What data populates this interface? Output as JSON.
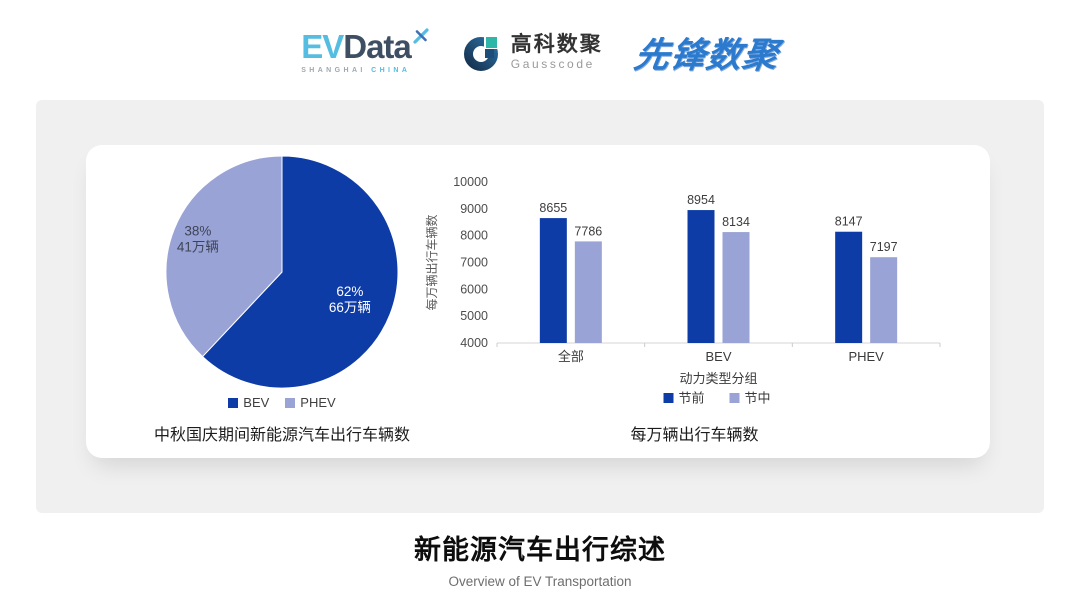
{
  "colors": {
    "brand_dark_blue": "#0e3ca6",
    "brand_light_blue": "#99a3d6",
    "panel_bg": "#f0f0f0",
    "card_bg": "#ffffff",
    "evdata_blue": "#55bde2",
    "evdata_dark": "#3f4f63",
    "gausscode_navy": "#1d4e79",
    "gausscode_teal": "#2eb6a8",
    "xianfeng_blue": "#2b7ace"
  },
  "header": {
    "evdata": {
      "ev": "EV",
      "data": "Data",
      "sub_left": "SHANGHAI",
      "sub_right": "CHINA"
    },
    "gausscode": {
      "cn": "高科数聚",
      "en": "Gausscode"
    },
    "xianfeng": {
      "text": "先锋数聚"
    }
  },
  "chart_data": [
    {
      "type": "pie",
      "title": "中秋国庆期间新能源汽车出行车辆数",
      "slices": [
        {
          "label": "BEV",
          "percent": 62,
          "amount_label": "66万辆",
          "color": "#0e3ca6",
          "text_color": "#ffffff"
        },
        {
          "label": "PHEV",
          "percent": 38,
          "amount_label": "41万辆",
          "color": "#99a3d6",
          "text_color": "#3e4457"
        }
      ],
      "start_angle": "12-oclock",
      "direction": "clockwise",
      "legend_position": "bottom"
    },
    {
      "type": "bar",
      "title": "每万辆出行车辆数",
      "categories": [
        "全部",
        "BEV",
        "PHEV"
      ],
      "series": [
        {
          "name": "节前",
          "color": "#0e3ca6",
          "values": [
            8655,
            8954,
            8147
          ]
        },
        {
          "name": "节中",
          "color": "#99a3d6",
          "values": [
            7786,
            8134,
            7197
          ]
        }
      ],
      "xlabel": "动力类型分组",
      "ylabel": "每万辆出行车辆数",
      "ylim": [
        4000,
        10000
      ],
      "ytick_step": 1000,
      "grid": false,
      "legend_position": "bottom"
    }
  ],
  "footer": {
    "title": "新能源汽车出行综述",
    "subtitle": "Overview of EV Transportation"
  }
}
